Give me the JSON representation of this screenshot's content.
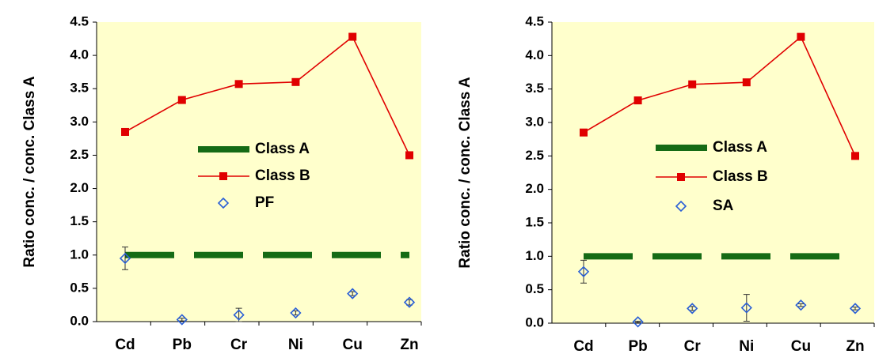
{
  "chart_data": [
    {
      "type": "line",
      "y_label": "Ratio conc. / conc. Class A",
      "categories": [
        "Cd",
        "Pb",
        "Cr",
        "Ni",
        "Cu",
        "Zn"
      ],
      "ylim": [
        0,
        4.5
      ],
      "yticks": [
        {
          "value": 0,
          "label": "0.0"
        },
        0.5,
        {
          "value": 1,
          "label": "1.0"
        },
        1.5,
        {
          "value": 2,
          "label": "2.0"
        },
        2.5,
        {
          "value": 3,
          "label": "3.0"
        },
        3.5,
        {
          "value": 4,
          "label": "4.0"
        },
        4.5
      ],
      "legend": "center",
      "series": [
        {
          "name": "Class A",
          "color": "#156b15",
          "line": "dashed",
          "marker": "none",
          "values": [
            1,
            1,
            1,
            1,
            1,
            1
          ]
        },
        {
          "name": "Class B",
          "color": "#e00000",
          "line": "solid",
          "marker": "square",
          "values": [
            2.85,
            3.33,
            3.57,
            3.6,
            4.28,
            2.5
          ]
        },
        {
          "name": "PF",
          "color": "#2a5fd6",
          "line": "none",
          "marker": "diamond",
          "values": [
            0.95,
            0.03,
            0.1,
            0.13,
            0.42,
            0.29
          ],
          "errors": [
            0.17,
            0.02,
            0.1,
            0.03,
            0.03,
            0.04
          ]
        }
      ]
    },
    {
      "type": "line",
      "y_label": "Ratio conc. / conc. Class A",
      "categories": [
        "Cd",
        "Pb",
        "Cr",
        "Ni",
        "Cu",
        "Zn"
      ],
      "ylim": [
        0,
        4.5
      ],
      "yticks": [
        {
          "value": 0,
          "label": "0.0"
        },
        0.5,
        {
          "value": 1,
          "label": "1.0"
        },
        1.5,
        {
          "value": 2,
          "label": "2.0"
        },
        2.5,
        {
          "value": 3,
          "label": "3.0"
        },
        3.5,
        {
          "value": 4,
          "label": "4.0"
        },
        4.5
      ],
      "legend": "center",
      "series": [
        {
          "name": "Class A",
          "color": "#156b15",
          "line": "dashed",
          "marker": "none",
          "values": [
            1,
            1,
            1,
            1,
            1,
            1
          ]
        },
        {
          "name": "Class B",
          "color": "#e00000",
          "line": "solid",
          "marker": "square",
          "values": [
            2.85,
            3.33,
            3.57,
            3.6,
            4.28,
            2.5
          ]
        },
        {
          "name": "SA",
          "color": "#2a5fd6",
          "line": "none",
          "marker": "diamond",
          "values": [
            0.77,
            0.02,
            0.22,
            0.23,
            0.27,
            0.22
          ],
          "errors": [
            0.17,
            0.01,
            0.03,
            0.2,
            0.02,
            0.02
          ]
        }
      ]
    }
  ]
}
